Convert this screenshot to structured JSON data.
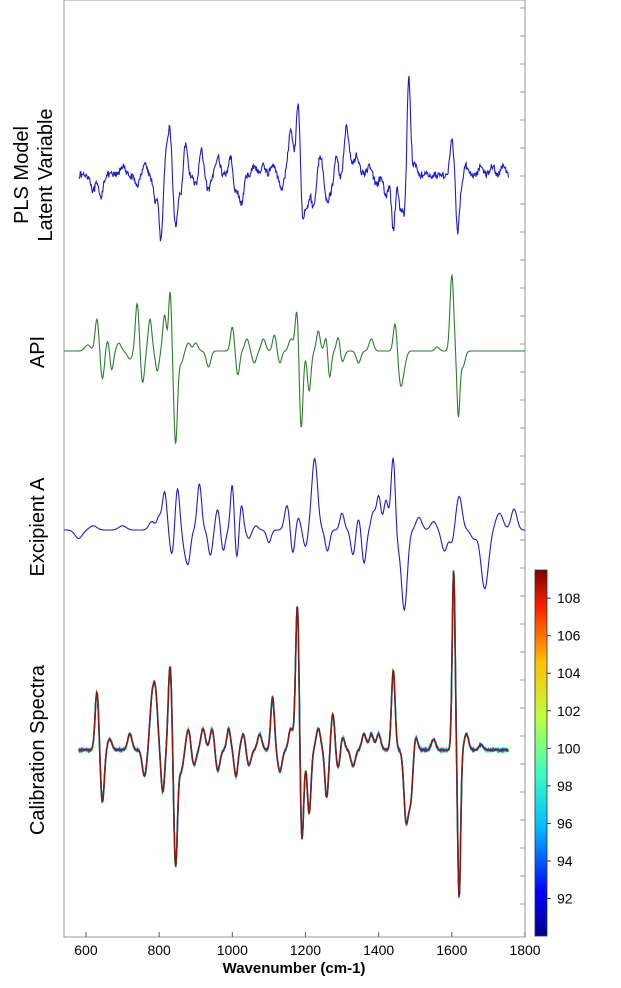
{
  "chart_data": {
    "type": "line",
    "xlabel": "Wavenumber (cm-1)",
    "xlim": [
      540,
      1800
    ],
    "xticks": [
      600,
      800,
      1000,
      1200,
      1400,
      1600,
      1800
    ],
    "panel_labels": {
      "pls": [
        "PLS Model",
        "Latent Variable"
      ],
      "api": "API",
      "excipient": "Excipient A",
      "calibration": "Calibration Spectra"
    },
    "colorbar": {
      "range": [
        90,
        109.5
      ],
      "ticks": [
        "92",
        "94",
        "96",
        "98",
        "100",
        "102",
        "104",
        "106",
        "108"
      ]
    },
    "series": [
      {
        "key": "pls",
        "color": "#1f1fbf",
        "xrange": [
          580,
          1755
        ],
        "noise": 0.22,
        "peaks": [
          [
            620,
            -0.5,
            6
          ],
          [
            640,
            -0.7,
            6
          ],
          [
            700,
            0.3,
            6
          ],
          [
            740,
            -0.3,
            8
          ],
          [
            760,
            0.4,
            6
          ],
          [
            790,
            -0.8,
            6
          ],
          [
            805,
            -2.0,
            5
          ],
          [
            822,
            0.9,
            5
          ],
          [
            830,
            1.2,
            4
          ],
          [
            845,
            -1.6,
            5
          ],
          [
            860,
            -0.6,
            6
          ],
          [
            872,
            1.1,
            5
          ],
          [
            900,
            -0.3,
            6
          ],
          [
            915,
            0.8,
            5
          ],
          [
            935,
            -0.5,
            6
          ],
          [
            960,
            0.6,
            6
          ],
          [
            995,
            0.6,
            5
          ],
          [
            1010,
            -0.5,
            6
          ],
          [
            1025,
            -0.9,
            6
          ],
          [
            1060,
            0.3,
            6
          ],
          [
            1085,
            0.3,
            6
          ],
          [
            1110,
            0.3,
            6
          ],
          [
            1135,
            -0.4,
            6
          ],
          [
            1160,
            1.4,
            7
          ],
          [
            1180,
            2.3,
            5
          ],
          [
            1192,
            -1.3,
            5
          ],
          [
            1205,
            -0.9,
            6
          ],
          [
            1222,
            -1.0,
            6
          ],
          [
            1240,
            0.6,
            6
          ],
          [
            1258,
            -0.8,
            5
          ],
          [
            1270,
            -0.5,
            6
          ],
          [
            1285,
            0.6,
            6
          ],
          [
            1298,
            -0.4,
            6
          ],
          [
            1312,
            1.5,
            8
          ],
          [
            1340,
            0.6,
            7
          ],
          [
            1375,
            0.3,
            6
          ],
          [
            1395,
            -0.3,
            6
          ],
          [
            1420,
            -0.7,
            6
          ],
          [
            1440,
            -1.7,
            5
          ],
          [
            1460,
            -1.0,
            6
          ],
          [
            1472,
            -1.2,
            5
          ],
          [
            1482,
            3.2,
            5
          ],
          [
            1500,
            0.3,
            6
          ],
          [
            1600,
            1.1,
            5
          ],
          [
            1615,
            -1.3,
            4
          ],
          [
            1620,
            -0.7,
            6
          ],
          [
            1640,
            0.3,
            6
          ],
          [
            1680,
            0.3,
            6
          ],
          [
            1710,
            0.3,
            6
          ],
          [
            1740,
            0.3,
            6
          ]
        ]
      },
      {
        "key": "api",
        "color": "#2e7d2e",
        "xrange": [
          540,
          1800
        ],
        "noise": 0,
        "peaks": [
          [
            605,
            0.15,
            8
          ],
          [
            630,
            0.8,
            5
          ],
          [
            645,
            -0.7,
            5
          ],
          [
            660,
            0.3,
            5
          ],
          [
            670,
            -0.5,
            5
          ],
          [
            690,
            0.2,
            6
          ],
          [
            720,
            -0.2,
            7
          ],
          [
            740,
            1.2,
            5
          ],
          [
            755,
            -0.8,
            5
          ],
          [
            775,
            0.8,
            5
          ],
          [
            795,
            -0.5,
            5
          ],
          [
            815,
            0.9,
            5
          ],
          [
            830,
            1.5,
            4
          ],
          [
            845,
            -2.3,
            5
          ],
          [
            860,
            -0.3,
            6
          ],
          [
            880,
            0.2,
            6
          ],
          [
            900,
            0.2,
            6
          ],
          [
            935,
            -0.4,
            6
          ],
          [
            1000,
            0.6,
            5
          ],
          [
            1015,
            -0.6,
            5
          ],
          [
            1040,
            0.3,
            6
          ],
          [
            1060,
            -0.3,
            6
          ],
          [
            1085,
            0.3,
            6
          ],
          [
            1115,
            0.4,
            5
          ],
          [
            1130,
            -0.3,
            5
          ],
          [
            1160,
            0.3,
            6
          ],
          [
            1177,
            1.1,
            5
          ],
          [
            1188,
            -2.0,
            5
          ],
          [
            1210,
            -1.0,
            5
          ],
          [
            1235,
            0.5,
            5
          ],
          [
            1258,
            0.5,
            5
          ],
          [
            1265,
            -0.8,
            5
          ],
          [
            1290,
            0.4,
            5
          ],
          [
            1300,
            -0.3,
            6
          ],
          [
            1345,
            -0.3,
            6
          ],
          [
            1380,
            0.3,
            6
          ],
          [
            1445,
            0.7,
            5
          ],
          [
            1460,
            -0.8,
            6
          ],
          [
            1470,
            -0.3,
            6
          ],
          [
            1560,
            0.1,
            6
          ],
          [
            1600,
            1.9,
            5
          ],
          [
            1618,
            -1.6,
            4
          ],
          [
            1630,
            -0.4,
            6
          ]
        ]
      },
      {
        "key": "excipient",
        "color": "#1f1fbf",
        "xrange": [
          540,
          1800
        ],
        "noise": 0,
        "peaks": [
          [
            580,
            -0.2,
            10
          ],
          [
            620,
            0.1,
            10
          ],
          [
            700,
            0.1,
            10
          ],
          [
            780,
            0.2,
            8
          ],
          [
            800,
            0.3,
            6
          ],
          [
            815,
            0.9,
            6
          ],
          [
            835,
            -0.6,
            6
          ],
          [
            850,
            1.0,
            6
          ],
          [
            870,
            -0.4,
            6
          ],
          [
            880,
            -0.7,
            6
          ],
          [
            910,
            1.1,
            6
          ],
          [
            940,
            -0.6,
            6
          ],
          [
            960,
            0.5,
            6
          ],
          [
            975,
            -0.5,
            6
          ],
          [
            1000,
            1.1,
            5
          ],
          [
            1012,
            -0.7,
            5
          ],
          [
            1025,
            0.6,
            5
          ],
          [
            1045,
            -0.2,
            6
          ],
          [
            1065,
            0.1,
            6
          ],
          [
            1100,
            -0.3,
            6
          ],
          [
            1150,
            0.6,
            7
          ],
          [
            1165,
            -0.6,
            6
          ],
          [
            1180,
            0.3,
            6
          ],
          [
            1200,
            -0.4,
            6
          ],
          [
            1225,
            1.7,
            8
          ],
          [
            1260,
            -0.5,
            6
          ],
          [
            1300,
            0.4,
            6
          ],
          [
            1330,
            -0.6,
            6
          ],
          [
            1345,
            0.3,
            6
          ],
          [
            1360,
            -0.8,
            6
          ],
          [
            1385,
            0.4,
            6
          ],
          [
            1400,
            0.8,
            6
          ],
          [
            1420,
            0.7,
            6
          ],
          [
            1440,
            1.8,
            6
          ],
          [
            1450,
            -0.4,
            6
          ],
          [
            1470,
            -1.9,
            8
          ],
          [
            1510,
            0.3,
            8
          ],
          [
            1550,
            0.2,
            8
          ],
          [
            1580,
            -0.5,
            8
          ],
          [
            1600,
            -0.3,
            6
          ],
          [
            1620,
            0.8,
            8
          ],
          [
            1660,
            -0.2,
            8
          ],
          [
            1690,
            -1.4,
            10
          ],
          [
            1730,
            0.4,
            10
          ],
          [
            1770,
            0.5,
            8
          ]
        ]
      },
      {
        "key": "calibration",
        "color": "#8b1a0a",
        "xrange": [
          580,
          1755
        ],
        "noise": 0,
        "peaks": [
          [
            630,
            1.1,
            5
          ],
          [
            645,
            -1.0,
            5
          ],
          [
            665,
            0.2,
            6
          ],
          [
            720,
            0.3,
            6
          ],
          [
            760,
            -0.5,
            6
          ],
          [
            780,
            0.8,
            6
          ],
          [
            790,
            1.0,
            6
          ],
          [
            810,
            -0.8,
            5
          ],
          [
            830,
            1.6,
            5
          ],
          [
            845,
            -2.2,
            5
          ],
          [
            860,
            -0.4,
            6
          ],
          [
            880,
            0.4,
            6
          ],
          [
            895,
            -0.3,
            6
          ],
          [
            920,
            0.4,
            6
          ],
          [
            945,
            0.4,
            6
          ],
          [
            960,
            -0.4,
            6
          ],
          [
            990,
            0.4,
            5
          ],
          [
            1010,
            -0.5,
            5
          ],
          [
            1030,
            0.3,
            6
          ],
          [
            1045,
            -0.3,
            6
          ],
          [
            1075,
            0.3,
            6
          ],
          [
            1110,
            1.0,
            5
          ],
          [
            1130,
            -0.4,
            6
          ],
          [
            1160,
            0.4,
            6
          ],
          [
            1178,
            2.8,
            5
          ],
          [
            1190,
            -1.8,
            5
          ],
          [
            1210,
            -1.2,
            5
          ],
          [
            1235,
            0.4,
            6
          ],
          [
            1258,
            -0.9,
            5
          ],
          [
            1275,
            0.7,
            5
          ],
          [
            1290,
            -0.4,
            6
          ],
          [
            1300,
            0.3,
            6
          ],
          [
            1330,
            -0.3,
            6
          ],
          [
            1360,
            0.3,
            6
          ],
          [
            1380,
            0.3,
            6
          ],
          [
            1400,
            0.3,
            6
          ],
          [
            1440,
            1.5,
            5
          ],
          [
            1475,
            -1.3,
            6
          ],
          [
            1488,
            -0.9,
            6
          ],
          [
            1500,
            0.3,
            6
          ],
          [
            1550,
            0.2,
            6
          ],
          [
            1605,
            3.4,
            4
          ],
          [
            1620,
            -2.8,
            4
          ],
          [
            1640,
            0.3,
            6
          ],
          [
            1680,
            0.1,
            6
          ]
        ]
      }
    ]
  }
}
